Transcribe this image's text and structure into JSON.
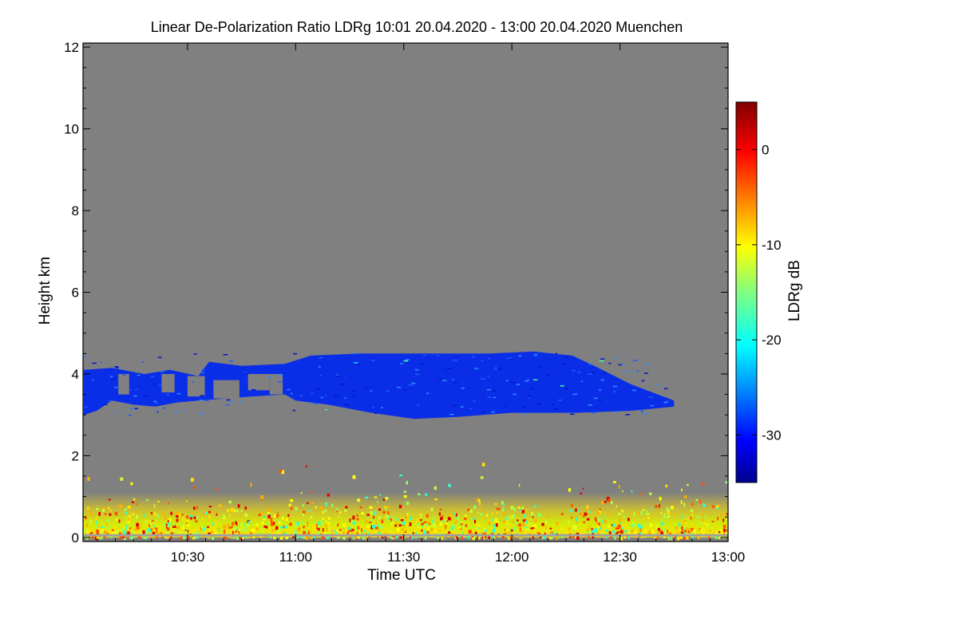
{
  "chart_data": {
    "type": "heatmap",
    "title": "Linear De-Polarization Ratio LDRg   10:01 20.04.2020 - 13:00 20.04.2020 Muenchen",
    "xlabel": "Time UTC",
    "ylabel": "Height km",
    "xlim": [
      10.0167,
      13.0
    ],
    "ylim": [
      -0.1,
      12.1
    ],
    "x_ticks": [
      {
        "value": 10.5,
        "label": "10:30"
      },
      {
        "value": 11.0,
        "label": "11:00"
      },
      {
        "value": 11.5,
        "label": "11:30"
      },
      {
        "value": 12.0,
        "label": "12:00"
      },
      {
        "value": 12.5,
        "label": "12:30"
      },
      {
        "value": 13.0,
        "label": "13:00"
      }
    ],
    "y_ticks": [
      {
        "value": 0,
        "label": "0"
      },
      {
        "value": 2,
        "label": "2"
      },
      {
        "value": 4,
        "label": "4"
      },
      {
        "value": 6,
        "label": "6"
      },
      {
        "value": 8,
        "label": "8"
      },
      {
        "value": 10,
        "label": "10"
      },
      {
        "value": 12,
        "label": "12"
      }
    ],
    "colorbar": {
      "label": "LDRg dB",
      "range": [
        -35,
        5
      ],
      "ticks": [
        {
          "value": 0,
          "label": "0"
        },
        {
          "value": -10,
          "label": "-10"
        },
        {
          "value": -20,
          "label": "-20"
        },
        {
          "value": -30,
          "label": "-30"
        }
      ],
      "colormap": "jet"
    },
    "background_color": "#808080",
    "features": [
      {
        "name": "cirrus-layer",
        "time_start": 10.0167,
        "time_end": 12.75,
        "height_base_km": 2.9,
        "height_top_km": 4.6,
        "ldr_db": -30
      },
      {
        "name": "boundary-layer-aerosol",
        "time_start": 10.0167,
        "time_end": 13.0,
        "height_base_km": 0.0,
        "height_top_km": 2.0,
        "ldr_db": -10
      }
    ]
  }
}
